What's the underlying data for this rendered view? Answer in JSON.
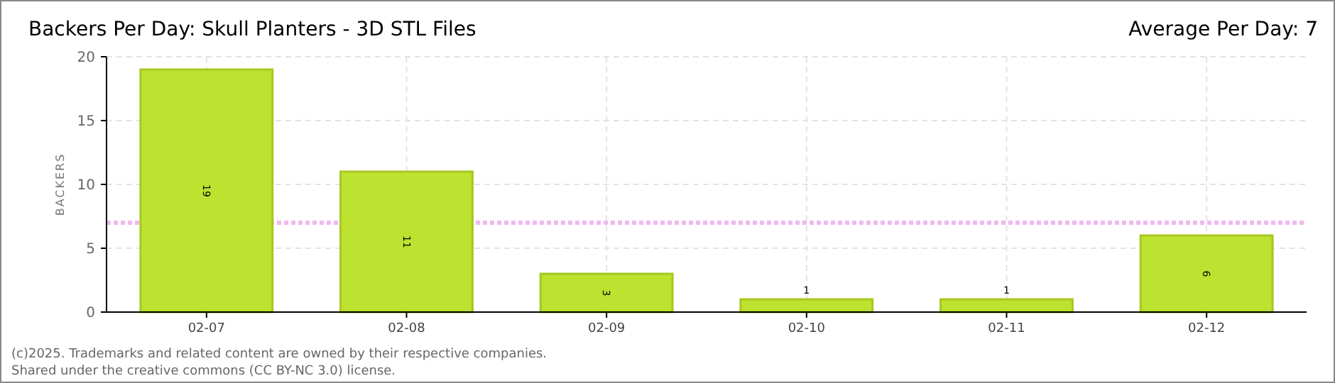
{
  "chart_data": {
    "type": "bar",
    "title": "Backers Per Day: Skull Planters - 3D STL Files",
    "subtitle": "Average Per Day: 7",
    "ylabel": "BACKERS",
    "categories": [
      "02-07",
      "02-08",
      "02-09",
      "02-10",
      "02-11",
      "02-12"
    ],
    "values": [
      19,
      11,
      3,
      1,
      1,
      6
    ],
    "color": "#bde22f",
    "ylim": [
      0,
      20
    ],
    "yticks": [
      0,
      5,
      10,
      15,
      20
    ],
    "grid": true,
    "data_labels": true,
    "ref_lines": [
      {
        "axis": "y",
        "value": 7,
        "color": "#f0b8f0",
        "line_style": "dotted"
      }
    ],
    "annotations": [
      "(c)2025. Trademarks and related content are owned by their respective companies.",
      "Shared under the creative commons (CC BY-NC 3.0) license."
    ]
  }
}
